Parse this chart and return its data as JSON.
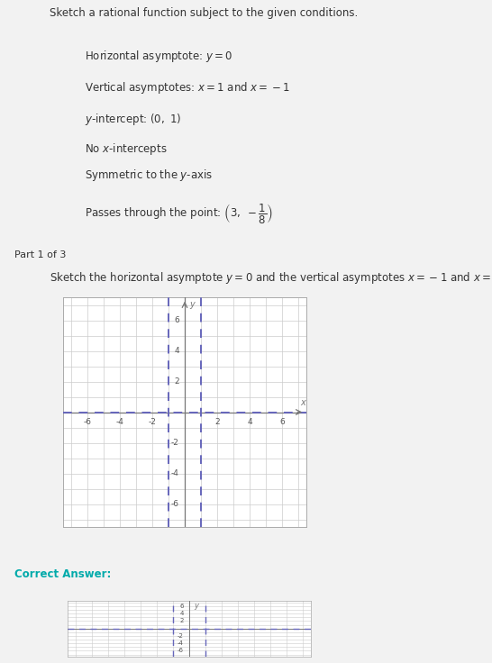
{
  "xlim": [
    -7.5,
    7.5
  ],
  "ylim": [
    -7.5,
    7.5
  ],
  "xticks": [
    -6,
    -4,
    -2,
    2,
    4,
    6
  ],
  "yticks": [
    -6,
    -4,
    -2,
    2,
    4,
    6
  ],
  "grid_color": "#cccccc",
  "axis_color": "#777777",
  "asymptote_color": "#6666bb",
  "asymptote_lw": 1.4,
  "asymptote_dash": [
    5,
    4
  ],
  "h_asymptote_y": 0,
  "v_asymptote_x1": -1,
  "v_asymptote_x2": 1,
  "bg_color": "#ffffff",
  "panel_bg": "#f2f2f2",
  "plot_bg": "#f8f8f8",
  "banner_bg": "#c8c8c8",
  "tick_fontsize": 7,
  "text_color": "#333333",
  "correct_answer_color": "#00aaaa"
}
